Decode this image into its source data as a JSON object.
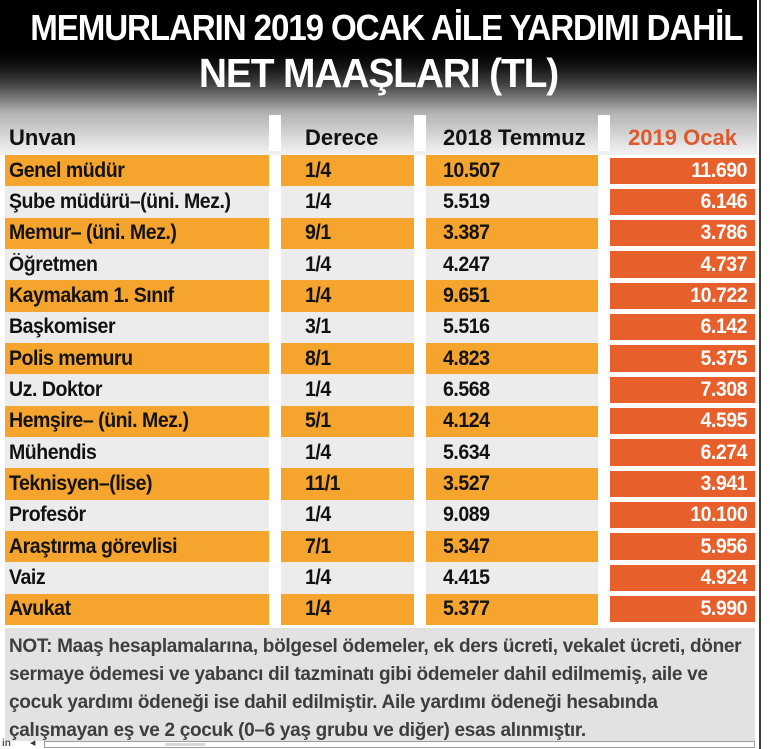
{
  "title": {
    "line1": "MEMURLARIN 2019 OCAK AİLE YARDIMI DAHİL",
    "line2": "NET MAAŞLARI (TL)"
  },
  "chart_data": {
    "type": "table",
    "title": "MEMURLARIN 2019 OCAK AİLE YARDIMI DAHİL NET MAAŞLARI (TL)",
    "columns": [
      "Unvan",
      "Derece",
      "2018 Temmuz",
      "2019 Ocak"
    ],
    "rows": [
      [
        "Genel müdür",
        "1/4",
        "10.507",
        "11.690"
      ],
      [
        "Şube müdürü–(üni. Mez.)",
        "1/4",
        "5.519",
        "6.146"
      ],
      [
        "Memur– (üni. Mez.)",
        "9/1",
        "3.387",
        "3.786"
      ],
      [
        "Öğretmen",
        "1/4",
        "4.247",
        "4.737"
      ],
      [
        "Kaymakam 1. Sınıf",
        "1/4",
        "9.651",
        "10.722"
      ],
      [
        "Başkomiser",
        "3/1",
        "5.516",
        "6.142"
      ],
      [
        "Polis memuru",
        "8/1",
        "4.823",
        "5.375"
      ],
      [
        "Uz. Doktor",
        "1/4",
        "6.568",
        "7.308"
      ],
      [
        "Hemşire– (üni. Mez.)",
        "5/1",
        "4.124",
        "4.595"
      ],
      [
        "Mühendis",
        "1/4",
        "5.634",
        "6.274"
      ],
      [
        "Teknisyen–(lise)",
        "11/1",
        "3.527",
        "3.941"
      ],
      [
        "Profesör",
        "1/4",
        "9.089",
        "10.100"
      ],
      [
        "Araştırma görevlisi",
        "7/1",
        "5.347",
        "5.956"
      ],
      [
        "Vaiz",
        "1/4",
        "4.415",
        "4.924"
      ],
      [
        "Avukat",
        "1/4",
        "5.377",
        "5.990"
      ]
    ],
    "layout_hints": {
      "striped_rows": "odd rows orange, even rows light gray",
      "highlight_column": "2019 Ocak"
    }
  },
  "note": "NOT: Maaş hesaplamalarına, bölgesel ödemeler, ek ders ücreti, vekalet ücreti, döner sermaye ödemesi ve yabancı dil tazminatı gibi ödemeler dahil edilmemiş, aile ve çocuk yardımı ödeneği ise dahil edilmiştir. Aile yardımı ödeneği hesabında çalışmayan eş ve 2 çocuk (0–6 yaş grubu ve diğer) esas alınmıştır.",
  "scrollbar": {
    "text_fragment": "in",
    "left_arrow": "◀"
  },
  "colors": {
    "row_orange": "#f5a42e",
    "highlight_red": "#e7602c",
    "header_accent": "#dd5a2e",
    "row_gray": "#ececed",
    "note_bg": "#e2e2e3",
    "masthead_black": "#000000"
  }
}
